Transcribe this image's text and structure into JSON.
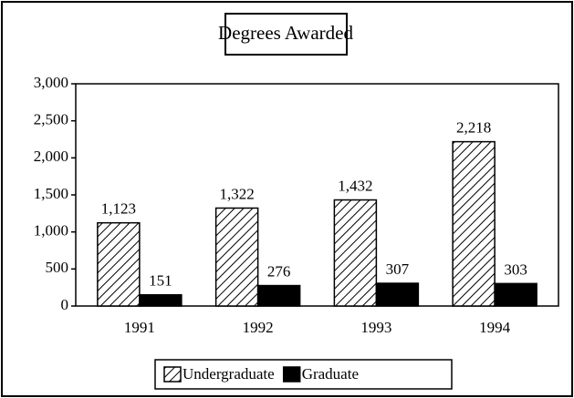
{
  "chart_data": {
    "type": "bar",
    "title": "Degrees Awarded",
    "categories": [
      "1991",
      "1992",
      "1993",
      "1994"
    ],
    "series": [
      {
        "name": "Undergraduate",
        "color": "#000000",
        "pattern": "diagonal-hatch",
        "values": [
          1123,
          1322,
          1432,
          2218
        ],
        "value_labels": [
          "1,123",
          "1,322",
          "1,432",
          "2,218"
        ]
      },
      {
        "name": "Graduate",
        "color": "#000000",
        "pattern": "solid",
        "values": [
          151,
          276,
          307,
          303
        ]
      }
    ],
    "ylim": [
      0,
      3000
    ],
    "yticks": [
      0,
      500,
      {
        "value": 1000,
        "label": "1,000"
      },
      {
        "value": 1500,
        "label": "1,500"
      },
      {
        "value": 2000,
        "label": "2,000"
      },
      {
        "value": 2500,
        "label": "2,500"
      },
      {
        "value": 3000,
        "label": "3,000"
      }
    ],
    "grid": false,
    "legend": "bottom"
  }
}
